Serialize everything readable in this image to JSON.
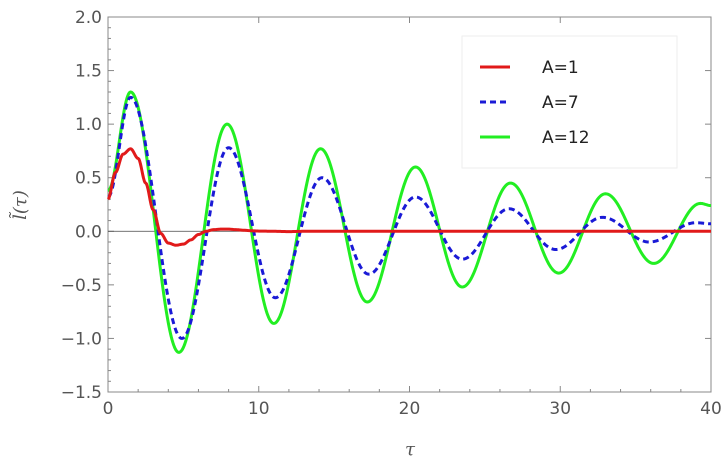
{
  "chart_data": {
    "type": "line",
    "xlabel": "τ",
    "ylabel": "l̃(τ)",
    "xlim": [
      0,
      40
    ],
    "ylim": [
      -1.5,
      2.0
    ],
    "xticks": [
      0,
      10,
      20,
      30,
      40
    ],
    "xtick_labels": [
      "0",
      "10",
      "20",
      "30",
      "40"
    ],
    "yticks": [
      -1.5,
      -1.0,
      -0.5,
      0.0,
      0.5,
      1.0,
      1.5,
      2.0
    ],
    "ytick_labels": [
      "−1.5",
      "−1.0",
      "−0.5",
      "0.0",
      "0.5",
      "1.0",
      "1.5",
      "2.0"
    ],
    "grid": false,
    "legend": "top-right",
    "series": [
      {
        "name": "A=1",
        "color": "#e11a1a",
        "dash": "solid",
        "x": [
          0,
          0.5,
          1,
          1.5,
          2,
          2.5,
          3,
          3.5,
          4,
          4.5,
          5,
          5.5,
          6,
          6.5,
          7,
          7.5,
          8,
          8.5,
          9,
          9.5,
          10,
          11,
          12,
          13,
          14,
          16,
          20,
          25,
          30,
          35,
          40
        ],
        "y": [
          0.3,
          0.55,
          0.72,
          0.77,
          0.68,
          0.45,
          0.2,
          -0.02,
          -0.11,
          -0.13,
          -0.12,
          -0.08,
          -0.03,
          0.0,
          0.015,
          0.02,
          0.02,
          0.015,
          0.01,
          0.005,
          0.002,
          0.0,
          -0.003,
          0.0,
          0.0,
          0.0,
          0.0,
          0.0,
          0.0,
          0.0,
          0.0
        ]
      },
      {
        "name": "A=7",
        "color": "#1a1ad6",
        "dash": "dashed",
        "x": [
          0,
          1.5,
          4.9,
          8.0,
          11.1,
          14.2,
          17.3,
          20.4,
          23.5,
          26.6,
          29.7,
          32.8,
          35.9,
          39.0,
          40
        ],
        "y": [
          0.32,
          1.25,
          -1.0,
          0.78,
          -0.62,
          0.5,
          -0.4,
          0.32,
          -0.26,
          0.21,
          -0.17,
          0.13,
          -0.1,
          0.08,
          0.07
        ]
      },
      {
        "name": "A=12",
        "color": "#22ee22",
        "dash": "solid",
        "x": [
          0,
          1.5,
          4.7,
          7.9,
          11.0,
          14.1,
          17.2,
          20.4,
          23.5,
          26.7,
          29.9,
          33.0,
          36.2,
          39.3,
          40
        ],
        "y": [
          0.38,
          1.3,
          -1.13,
          1.0,
          -0.86,
          0.77,
          -0.66,
          0.6,
          -0.52,
          0.45,
          -0.39,
          0.35,
          -0.3,
          0.26,
          0.24
        ]
      }
    ]
  }
}
